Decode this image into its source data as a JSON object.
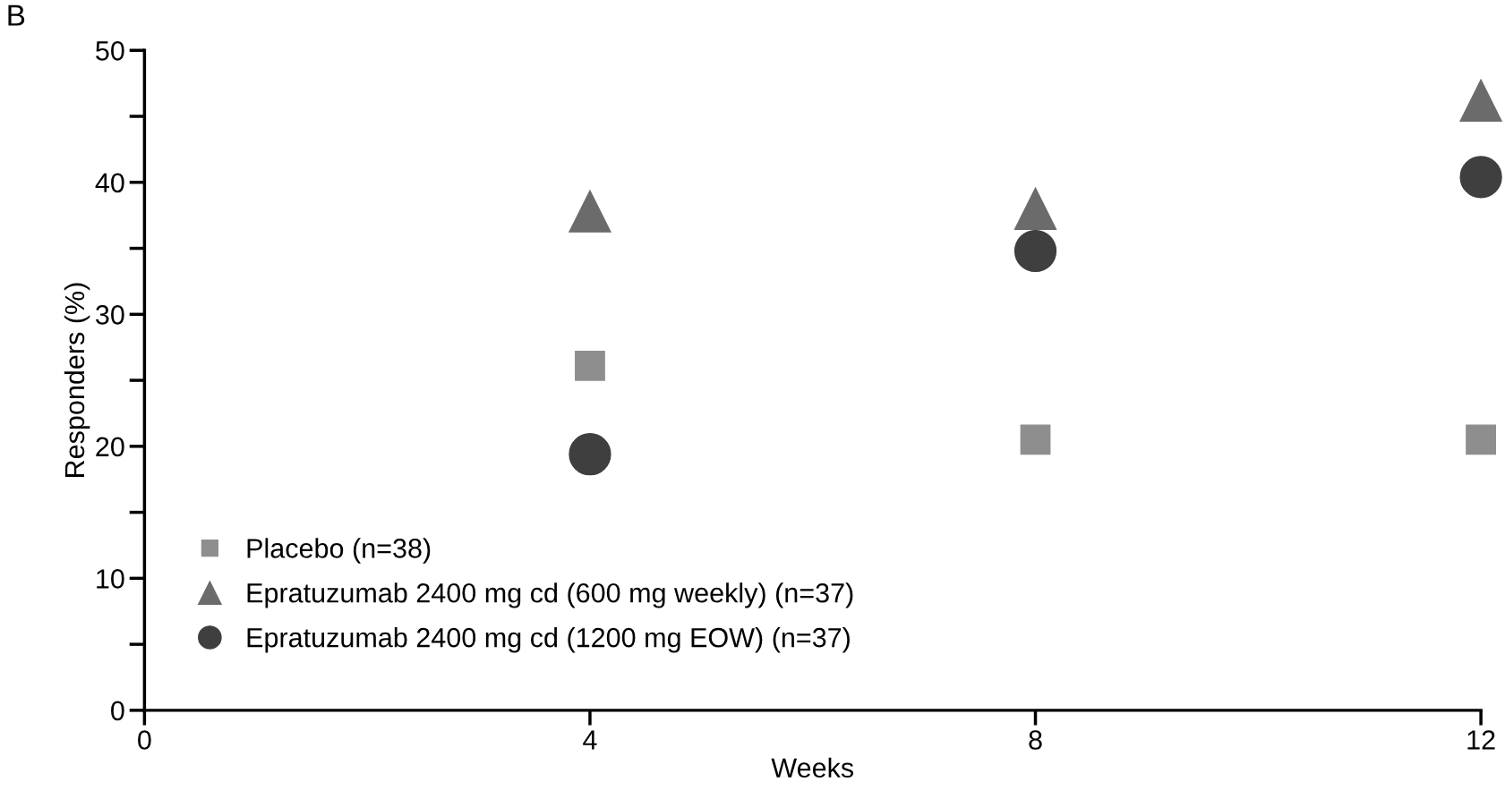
{
  "chart_data": {
    "type": "scatter",
    "xlabel": "Weeks",
    "ylabel": "Responders (%)",
    "x": [
      4,
      8,
      12
    ],
    "xlim": [
      0,
      12
    ],
    "xticks": [
      0,
      4,
      8,
      12
    ],
    "ylim": [
      0,
      50
    ],
    "yticks": [
      0,
      10,
      20,
      30,
      40,
      50
    ],
    "grid": false,
    "legend": "bottom left",
    "annotations": [
      "B"
    ],
    "series": [
      {
        "name": "Placebo (n=38)",
        "color": "#8e8e8e",
        "marker": "square",
        "values": [
          26.1,
          20.5,
          20.5
        ]
      },
      {
        "name": "Epratuzumab 2400 mg cd (600 mg weekly) (n=37)",
        "color": "#6b6b6b",
        "marker": "triangle",
        "values": [
          37.8,
          38.0,
          46.2
        ]
      },
      {
        "name": "Epratuzumab 2400 mg cd (1200 mg EOW) (n=37)",
        "color": "#3f3f3f",
        "marker": "circle",
        "values": [
          19.4,
          34.8,
          40.4
        ]
      }
    ]
  }
}
